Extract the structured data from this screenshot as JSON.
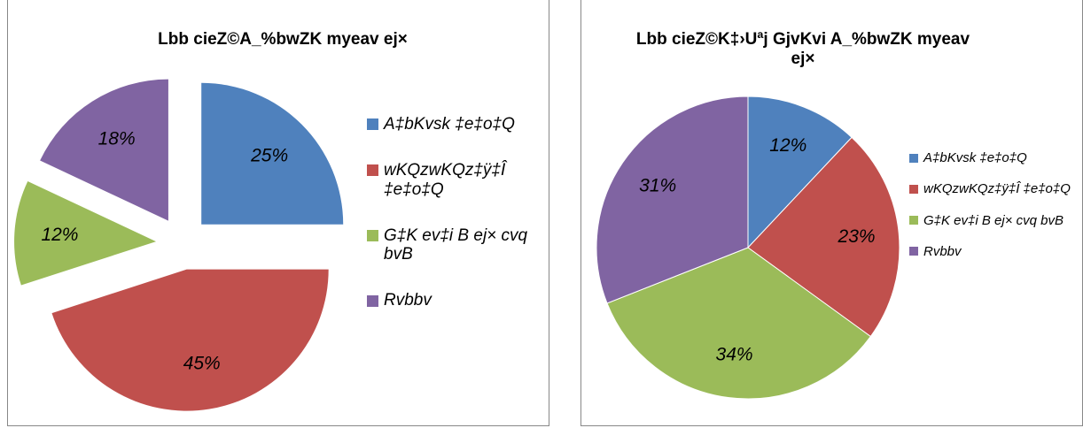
{
  "chart_data": [
    {
      "type": "pie",
      "title": "Lbb cieZ©A_%bwZK myeav ej×",
      "exploded": true,
      "categories": [
        "A‡bKvsk ‡e‡o‡Q",
        "wKQzwKQz‡ÿ‡Î ‡e‡o‡Q",
        "G‡K ev‡i B ej× cvq bvB",
        "Rvbbv"
      ],
      "values": [
        25,
        45,
        12,
        18
      ],
      "value_labels": [
        "25%",
        "45%",
        "12%",
        "18%"
      ],
      "colors": [
        "#4f81bd",
        "#c0504d",
        "#9bbb59",
        "#8064a2"
      ],
      "legend": "right"
    },
    {
      "type": "pie",
      "title": "Lbb cieZ©K‡›Uªj GjvKvi A_%bwZK myeav ej×",
      "exploded": false,
      "categories": [
        "A‡bKvsk ‡e‡o‡Q",
        "wKQzwKQz‡ÿ‡Î ‡e‡o‡Q",
        "G‡K ev‡i B ej× cvq bvB",
        "Rvbbv"
      ],
      "values": [
        12,
        23,
        34,
        31
      ],
      "value_labels": [
        "12%",
        "23%",
        "34%",
        "31%"
      ],
      "colors": [
        "#4f81bd",
        "#c0504d",
        "#9bbb59",
        "#8064a2"
      ],
      "legend": "right"
    }
  ]
}
